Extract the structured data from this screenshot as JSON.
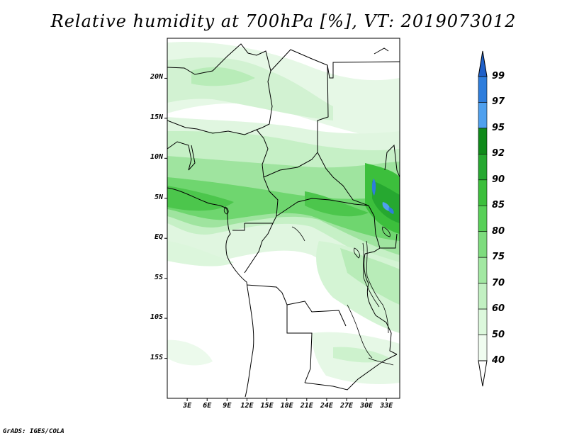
{
  "title": "Relative humidity at 700hPa [%], VT: 2019073012",
  "credit": "GrADS: IGES/COLA",
  "map": {
    "lat_labels": [
      "20N",
      "15N",
      "10N",
      "5N",
      "EQ",
      "5S",
      "10S",
      "15S"
    ],
    "lon_labels": [
      "3E",
      "6E",
      "9E",
      "12E",
      "15E",
      "18E",
      "21E",
      "24E",
      "27E",
      "30E",
      "33E"
    ],
    "lat_range": [
      -20,
      25
    ],
    "lon_range": [
      0,
      35
    ]
  },
  "colorbar": {
    "labels": [
      "99",
      "97",
      "95",
      "92",
      "90",
      "85",
      "80",
      "75",
      "70",
      "60",
      "50",
      "40"
    ],
    "colors": [
      "#1e5fc8",
      "#2e7ddc",
      "#4fa0ee",
      "#0f8a1a",
      "#26a830",
      "#3cbf3c",
      "#58d058",
      "#7edc7e",
      "#a2e8a2",
      "#c2f0c2",
      "#dcf8dc",
      "#f0fcf0"
    ]
  }
}
